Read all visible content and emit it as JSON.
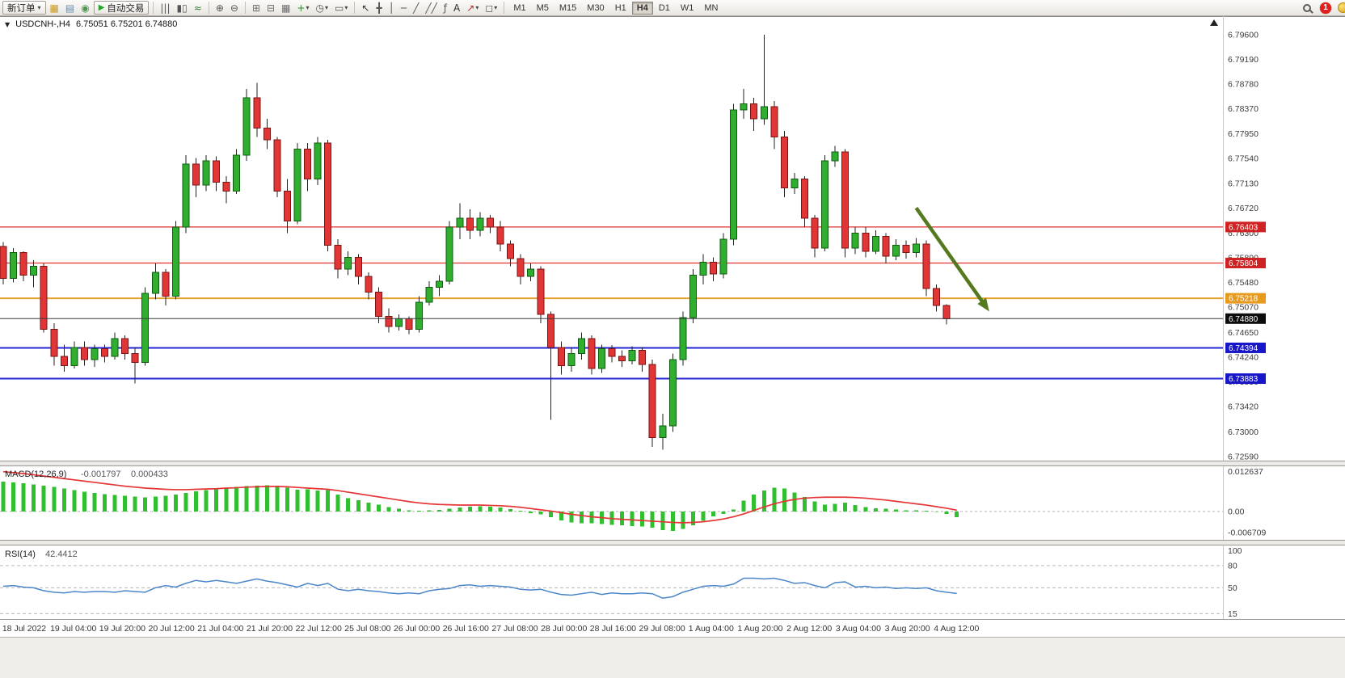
{
  "toolbar": {
    "new_order_label": "新订单",
    "autotrading_label": "自动交易",
    "play_glyph": "▶",
    "caret": "▾",
    "icons_g1": [
      {
        "name": "market-watch-icon",
        "glyph": "▦",
        "color": "#c99a1e"
      },
      {
        "name": "data-window-icon",
        "glyph": "▤",
        "color": "#6b8cad"
      },
      {
        "name": "navigator-icon",
        "glyph": "◉",
        "color": "#4a9a4a"
      }
    ],
    "icons_g2": [
      {
        "name": "bar-chart-icon",
        "glyph": "|||",
        "color": "#555555"
      },
      {
        "name": "candlestick-chart-icon",
        "glyph": "▮▯",
        "color": "#555555"
      },
      {
        "name": "line-chart-icon",
        "glyph": "≈",
        "color": "#2e7d32"
      }
    ],
    "icons_g3": [
      {
        "name": "zoom-in-icon",
        "glyph": "⊕",
        "color": "#555555"
      },
      {
        "name": "zoom-out-icon",
        "glyph": "⊖",
        "color": "#555555"
      }
    ],
    "icons_g4": [
      {
        "name": "tile-windows-icon",
        "glyph": "⊞",
        "color": "#6f6f6f"
      },
      {
        "name": "cascade-windows-icon",
        "glyph": "⊟",
        "color": "#6f6f6f"
      },
      {
        "name": "arrange-windows-icon",
        "glyph": "▦",
        "color": "#6f6f6f"
      },
      {
        "name": "new-chart-icon",
        "glyph": "+",
        "color": "#2e8b2e",
        "caret": true
      },
      {
        "name": "period-clock-icon",
        "glyph": "◷",
        "color": "#555555",
        "caret": true
      },
      {
        "name": "template-icon",
        "glyph": "▭",
        "color": "#555555",
        "caret": true
      }
    ],
    "icons_g5": [
      {
        "name": "cursor-icon",
        "glyph": "↖",
        "color": "#333333"
      },
      {
        "name": "crosshair-icon",
        "glyph": "╋",
        "color": "#555555"
      },
      {
        "name": "vertical-line-icon",
        "glyph": "│",
        "color": "#555555"
      },
      {
        "name": "horizontal-line-icon",
        "glyph": "─",
        "color": "#555555"
      },
      {
        "name": "trendline-icon",
        "glyph": "╱",
        "color": "#555555"
      },
      {
        "name": "channel-icon",
        "glyph": "╱╱",
        "color": "#555555"
      },
      {
        "name": "fibonacci-icon",
        "glyph": "ƒ",
        "color": "#555555"
      },
      {
        "name": "text-icon",
        "glyph": "A",
        "color": "#333333"
      },
      {
        "name": "arrows-tool-icon",
        "glyph": "↗",
        "color": "#b03030",
        "caret": true
      },
      {
        "name": "shapes-icon",
        "glyph": "◻",
        "color": "#555555",
        "caret": true
      }
    ],
    "timeframes": [
      "M1",
      "M5",
      "M15",
      "M30",
      "H1",
      "H4",
      "D1",
      "W1",
      "MN"
    ],
    "active_timeframe": "H4",
    "badge_count": "1"
  },
  "chart_header": {
    "dropdown_glyph": "▼",
    "symbol": "USDCNH-,H4",
    "quote": "6.75051 6.75201 6.74880"
  },
  "chart_data": [
    {
      "type": "candlestick",
      "title": "USDCNH-,H4",
      "ylim": [
        6.7252,
        6.7988
      ],
      "y_axis_labels": [
        "6.79600",
        "6.79190",
        "6.78780",
        "6.78370",
        "6.77950",
        "6.77540",
        "6.77130",
        "6.76720",
        "6.76300",
        "6.75890",
        "6.75480",
        "6.75070",
        "6.74650",
        "6.74240",
        "6.73830",
        "6.73420",
        "6.73000",
        "6.72590"
      ],
      "x_labels": [
        "18 Jul 2022",
        "19 Jul 04:00",
        "19 Jul 20:00",
        "20 Jul 12:00",
        "21 Jul 04:00",
        "21 Jul 20:00",
        "22 Jul 12:00",
        "25 Jul 08:00",
        "26 Jul 00:00",
        "26 Jul 16:00",
        "27 Jul 08:00",
        "28 Jul 00:00",
        "28 Jul 16:00",
        "29 Jul 08:00",
        "1 Aug 04:00",
        "1 Aug 20:00",
        "2 Aug 12:00",
        "3 Aug 04:00",
        "3 Aug 20:00",
        "4 Aug 12:00"
      ],
      "colors": {
        "up": "#2fae2f",
        "up_border": "#0f5c0f",
        "down": "#e23535",
        "down_border": "#7a1515",
        "wick": "#222222"
      },
      "hlines": [
        {
          "price": 6.76403,
          "label": "6.76403",
          "color": "#e03030",
          "tag_bg": "#cf2323",
          "width": 1.2
        },
        {
          "price": 6.75804,
          "label": "6.75804",
          "color": "#e03030",
          "tag_bg": "#cf2323",
          "width": 1.2
        },
        {
          "price": 6.75218,
          "label": "6.75218",
          "color": "#e8a02c",
          "tag_bg": "#e69b1f",
          "width": 2
        },
        {
          "price": 6.74394,
          "label": "6.74394",
          "color": "#2525d6",
          "tag_bg": "#1717c9",
          "width": 2
        },
        {
          "price": 6.73883,
          "label": "6.73883",
          "color": "#2525d6",
          "tag_bg": "#1717c9",
          "width": 2
        }
      ],
      "price_line": {
        "price": 6.7488,
        "label": "6.74880",
        "color": "#3d3d3d",
        "tag_bg": "#0d0d0d"
      },
      "trend_arrow": {
        "from_index": 90,
        "from_price": 6.7672,
        "to_index": 97.2,
        "to_price": 6.75,
        "color": "#55791e"
      },
      "candles": [
        [
          6.7608,
          6.7615,
          6.7545,
          6.7555
        ],
        [
          6.7555,
          6.7605,
          6.7548,
          6.7598
        ],
        [
          6.7598,
          6.76,
          6.755,
          6.756
        ],
        [
          6.756,
          6.7585,
          6.754,
          6.7575
        ],
        [
          6.7575,
          6.758,
          6.7465,
          6.747
        ],
        [
          6.747,
          6.748,
          6.741,
          6.7425
        ],
        [
          6.7425,
          6.7445,
          6.74,
          6.741
        ],
        [
          6.741,
          6.745,
          6.7405,
          6.744
        ],
        [
          6.744,
          6.745,
          6.741,
          6.742
        ],
        [
          6.742,
          6.7445,
          6.7408,
          6.7438
        ],
        [
          6.7438,
          6.7445,
          6.7415,
          6.7425
        ],
        [
          6.7425,
          6.7465,
          6.742,
          6.7455
        ],
        [
          6.7455,
          6.746,
          6.742,
          6.743
        ],
        [
          6.743,
          6.744,
          6.738,
          6.7415
        ],
        [
          6.7415,
          6.754,
          6.741,
          6.753
        ],
        [
          6.753,
          6.758,
          6.752,
          6.7565
        ],
        [
          6.7565,
          6.757,
          6.751,
          6.7525
        ],
        [
          6.7525,
          6.765,
          6.752,
          6.764
        ],
        [
          6.764,
          6.776,
          6.763,
          6.7745
        ],
        [
          6.7745,
          6.7755,
          6.769,
          6.771
        ],
        [
          6.771,
          6.776,
          6.77,
          6.775
        ],
        [
          6.775,
          6.7758,
          6.77,
          6.7715
        ],
        [
          6.7715,
          6.7725,
          6.768,
          6.77
        ],
        [
          6.77,
          6.777,
          6.7695,
          6.776
        ],
        [
          6.776,
          6.787,
          6.775,
          6.7855
        ],
        [
          6.7855,
          6.788,
          6.779,
          6.7805
        ],
        [
          6.7805,
          6.782,
          6.777,
          6.7785
        ],
        [
          6.7785,
          6.779,
          6.769,
          6.77
        ],
        [
          6.77,
          6.772,
          6.763,
          6.765
        ],
        [
          6.765,
          6.778,
          6.7645,
          6.777
        ],
        [
          6.777,
          6.778,
          6.77,
          6.772
        ],
        [
          6.772,
          6.779,
          6.771,
          6.778
        ],
        [
          6.778,
          6.7785,
          6.76,
          6.761
        ],
        [
          6.761,
          6.762,
          6.7555,
          6.757
        ],
        [
          6.757,
          6.76,
          6.756,
          6.759
        ],
        [
          6.759,
          6.7595,
          6.7545,
          6.7558
        ],
        [
          6.7558,
          6.7565,
          6.752,
          6.7532
        ],
        [
          6.7532,
          6.754,
          6.748,
          6.7492
        ],
        [
          6.7492,
          6.7505,
          6.7465,
          6.7475
        ],
        [
          6.7475,
          6.7495,
          6.7468,
          6.7488
        ],
        [
          6.7488,
          6.7492,
          6.7462,
          6.747
        ],
        [
          6.747,
          6.7525,
          6.7465,
          6.7515
        ],
        [
          6.7515,
          6.755,
          6.751,
          6.754
        ],
        [
          6.754,
          6.756,
          6.7525,
          6.755
        ],
        [
          6.755,
          6.765,
          6.7545,
          6.764
        ],
        [
          6.764,
          6.768,
          6.762,
          6.7655
        ],
        [
          6.7655,
          6.767,
          6.762,
          6.7635
        ],
        [
          6.7635,
          6.7665,
          6.7625,
          6.7655
        ],
        [
          6.7655,
          6.766,
          6.763,
          6.764
        ],
        [
          6.764,
          6.765,
          6.76,
          6.7612
        ],
        [
          6.7612,
          6.7618,
          6.7575,
          6.7588
        ],
        [
          6.7588,
          6.7595,
          6.7545,
          6.7558
        ],
        [
          6.7558,
          6.758,
          6.755,
          6.757
        ],
        [
          6.757,
          6.7575,
          6.748,
          6.7495
        ],
        [
          6.7495,
          6.75,
          6.732,
          6.744
        ],
        [
          6.744,
          6.745,
          6.7395,
          6.741
        ],
        [
          6.741,
          6.744,
          6.74,
          6.743
        ],
        [
          6.743,
          6.7465,
          6.742,
          6.7455
        ],
        [
          6.7455,
          6.746,
          6.7395,
          6.7405
        ],
        [
          6.7405,
          6.7445,
          6.7398,
          6.7438
        ],
        [
          6.7438,
          6.7444,
          6.7415,
          6.7425
        ],
        [
          6.7425,
          6.7435,
          6.7408,
          6.7418
        ],
        [
          6.7418,
          6.7442,
          6.7412,
          6.7435
        ],
        [
          6.7435,
          6.744,
          6.74,
          6.7412
        ],
        [
          6.7412,
          6.742,
          6.7275,
          6.729
        ],
        [
          6.729,
          6.733,
          6.727,
          6.731
        ],
        [
          6.731,
          6.743,
          6.73,
          6.742
        ],
        [
          6.742,
          6.75,
          6.741,
          6.749
        ],
        [
          6.749,
          6.757,
          6.748,
          6.756
        ],
        [
          6.756,
          6.7595,
          6.7545,
          6.7582
        ],
        [
          6.7582,
          6.759,
          6.755,
          6.7562
        ],
        [
          6.7562,
          6.763,
          6.7555,
          6.762
        ],
        [
          6.762,
          6.7845,
          6.761,
          6.7835
        ],
        [
          6.7835,
          6.787,
          6.782,
          6.7845
        ],
        [
          6.7845,
          6.7855,
          6.78,
          6.782
        ],
        [
          6.782,
          6.796,
          6.781,
          6.784
        ],
        [
          6.784,
          6.785,
          6.777,
          6.779
        ],
        [
          6.779,
          6.78,
          6.769,
          6.7705
        ],
        [
          6.7705,
          6.773,
          6.7695,
          6.772
        ],
        [
          6.772,
          6.7725,
          6.764,
          6.7655
        ],
        [
          6.7655,
          6.766,
          6.759,
          6.7605
        ],
        [
          6.7605,
          6.776,
          6.76,
          6.775
        ],
        [
          6.775,
          6.7775,
          6.774,
          6.7765
        ],
        [
          6.7765,
          6.777,
          6.759,
          6.7605
        ],
        [
          6.7605,
          6.764,
          6.7595,
          6.763
        ],
        [
          6.763,
          6.764,
          6.759,
          6.76
        ],
        [
          6.76,
          6.7635,
          6.7595,
          6.7625
        ],
        [
          6.7625,
          6.763,
          6.758,
          6.7592
        ],
        [
          6.7592,
          6.762,
          6.7585,
          6.761
        ],
        [
          6.761,
          6.7618,
          6.7588,
          6.7598
        ],
        [
          6.7598,
          6.7622,
          6.759,
          6.7612
        ],
        [
          6.7612,
          6.7618,
          6.7525,
          6.7538
        ],
        [
          6.7538,
          6.7545,
          6.75,
          6.751
        ],
        [
          6.751,
          6.7512,
          6.7478,
          6.7488
        ]
      ]
    },
    {
      "type": "macd",
      "label": "MACD(12,26,9)",
      "main_value": "-0.001797",
      "signal_value": "0.000433",
      "y_axis_labels": [
        "0.012637",
        "0.00",
        "-0.006709"
      ],
      "ylim": [
        -0.0085,
        0.0138
      ],
      "colors": {
        "histogram": "#2fbf2f",
        "signal": "#e53535"
      },
      "histogram": [
        0.0095,
        0.0092,
        0.0089,
        0.0086,
        0.0082,
        0.0078,
        0.0073,
        0.0068,
        0.0063,
        0.0059,
        0.0055,
        0.0052,
        0.0049,
        0.0047,
        0.0045,
        0.0047,
        0.005,
        0.0054,
        0.0059,
        0.0064,
        0.0068,
        0.0072,
        0.0075,
        0.0078,
        0.008,
        0.0082,
        0.0083,
        0.0081,
        0.0075,
        0.0069,
        0.007,
        0.0066,
        0.0067,
        0.0054,
        0.0042,
        0.0035,
        0.0028,
        0.0021,
        0.0014,
        0.0008,
        0.0004,
        0.0002,
        0.0003,
        0.0005,
        0.0008,
        0.0012,
        0.0015,
        0.0016,
        0.0015,
        0.0012,
        0.0007,
        0.0002,
        -0.0005,
        -0.001,
        -0.0018,
        -0.0028,
        -0.0035,
        -0.0038,
        -0.0038,
        -0.004,
        -0.0043,
        -0.0044,
        -0.0046,
        -0.0048,
        -0.0052,
        -0.006,
        -0.0062,
        -0.0055,
        -0.0044,
        -0.003,
        -0.0016,
        -0.0008,
        0.0006,
        0.0034,
        0.0054,
        0.0066,
        0.0075,
        0.0072,
        0.006,
        0.0046,
        0.0032,
        0.0022,
        0.0024,
        0.0028,
        0.002,
        0.0014,
        0.001,
        0.0008,
        0.0006,
        0.0004,
        0.0003,
        0.0002,
        0.0,
        -0.0008,
        -0.0018
      ],
      "signal": [
        0.0126,
        0.0123,
        0.012,
        0.0116,
        0.0112,
        0.0108,
        0.0104,
        0.01,
        0.0096,
        0.0092,
        0.0088,
        0.0084,
        0.008,
        0.0077,
        0.0074,
        0.0072,
        0.007,
        0.0069,
        0.0069,
        0.007,
        0.0071,
        0.0072,
        0.0074,
        0.0075,
        0.0077,
        0.0078,
        0.0079,
        0.0079,
        0.0078,
        0.0076,
        0.0074,
        0.0072,
        0.007,
        0.0066,
        0.0061,
        0.0056,
        0.0051,
        0.0046,
        0.0041,
        0.0036,
        0.0031,
        0.0027,
        0.0024,
        0.0022,
        0.0021,
        0.002,
        0.002,
        0.002,
        0.0019,
        0.0018,
        0.0016,
        0.0013,
        0.0009,
        0.0005,
        0.0001,
        -0.0004,
        -0.0009,
        -0.0013,
        -0.0017,
        -0.002,
        -0.0023,
        -0.0025,
        -0.0027,
        -0.0029,
        -0.0031,
        -0.0033,
        -0.0035,
        -0.0036,
        -0.0035,
        -0.0033,
        -0.0029,
        -0.0024,
        -0.0017,
        -0.0008,
        0.0003,
        0.0014,
        0.0024,
        0.0032,
        0.0038,
        0.0042,
        0.0044,
        0.0045,
        0.0045,
        0.0045,
        0.0044,
        0.0042,
        0.0039,
        0.0036,
        0.0032,
        0.0028,
        0.0024,
        0.002,
        0.0015,
        0.001,
        0.0004
      ]
    },
    {
      "type": "rsi",
      "label": "RSI(14)",
      "value": "42.4412",
      "levels": [
        80,
        50,
        15
      ],
      "y_axis_values": [
        100,
        80,
        50,
        15
      ],
      "y_axis_labels": [
        "100",
        "80",
        "50",
        "15"
      ],
      "ylim": [
        10,
        105
      ],
      "color": "#4a86c8",
      "series": [
        52,
        53,
        51,
        50,
        46,
        44,
        43,
        45,
        44,
        45,
        45,
        44,
        46,
        45,
        44,
        50,
        53,
        51,
        56,
        60,
        58,
        60,
        58,
        56,
        59,
        62,
        59,
        57,
        54,
        51,
        56,
        53,
        56,
        48,
        46,
        48,
        46,
        45,
        43,
        42,
        43,
        42,
        46,
        48,
        49,
        53,
        54,
        52,
        53,
        52,
        51,
        48,
        47,
        48,
        44,
        41,
        40,
        42,
        44,
        41,
        43,
        42,
        42,
        43,
        42,
        36,
        38,
        44,
        48,
        52,
        53,
        52,
        55,
        63,
        63,
        62,
        63,
        60,
        56,
        57,
        53,
        50,
        57,
        58,
        51,
        52,
        50,
        51,
        49,
        50,
        49,
        50,
        46,
        44,
        42.4
      ]
    }
  ]
}
